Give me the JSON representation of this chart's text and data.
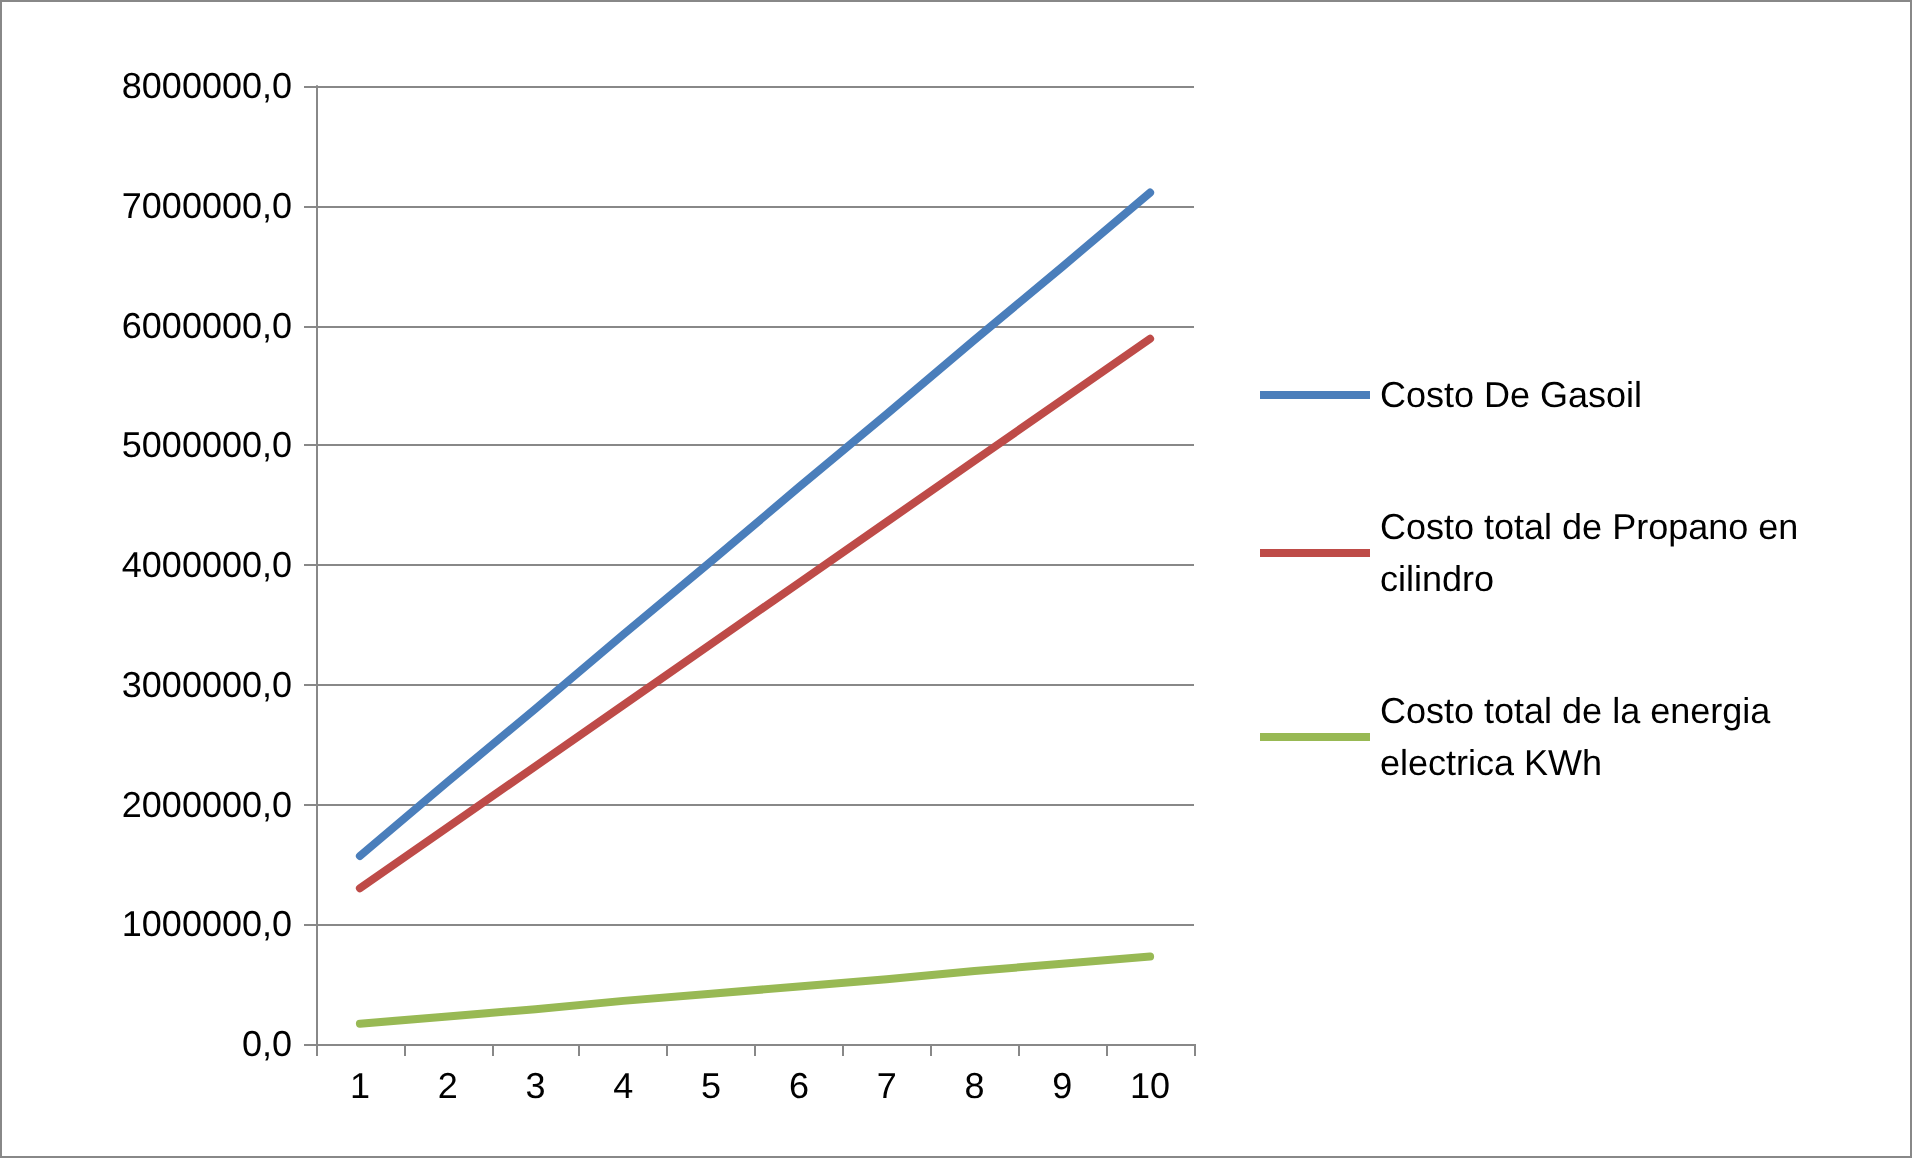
{
  "chart_data": {
    "type": "line",
    "categories": [
      "1",
      "2",
      "3",
      "4",
      "5",
      "6",
      "7",
      "8",
      "9",
      "10"
    ],
    "series": [
      {
        "name": "Costo De Gasoil",
        "color": "#4a7ebb",
        "values": [
          1570000,
          2190000,
          2800000,
          3420000,
          4030000,
          4650000,
          5260000,
          5880000,
          6490000,
          7110000
        ]
      },
      {
        "name": "Costo total de Propano en cilindro",
        "color": "#be4b48",
        "values": [
          1300000,
          1810000,
          2320000,
          2830000,
          3340000,
          3850000,
          4360000,
          4870000,
          5380000,
          5890000
        ]
      },
      {
        "name": "Costo total de la energia electrica KWh",
        "color": "#98b954",
        "values": [
          170000,
          230000,
          290000,
          360000,
          420000,
          480000,
          540000,
          610000,
          670000,
          730000
        ]
      }
    ],
    "ylim": [
      0,
      8000000
    ],
    "yticks": [
      {
        "value": 0,
        "label": "0,0"
      },
      {
        "value": 1000000,
        "label": "1000000,0"
      },
      {
        "value": 2000000,
        "label": "2000000,0"
      },
      {
        "value": 3000000,
        "label": "3000000,0"
      },
      {
        "value": 4000000,
        "label": "4000000,0"
      },
      {
        "value": 5000000,
        "label": "5000000,0"
      },
      {
        "value": 6000000,
        "label": "6000000,0"
      },
      {
        "value": 7000000,
        "label": "7000000,0"
      },
      {
        "value": 8000000,
        "label": "8000000,0"
      }
    ],
    "grid": "y",
    "legend": "right",
    "marker": "none",
    "line_style": "solid"
  }
}
